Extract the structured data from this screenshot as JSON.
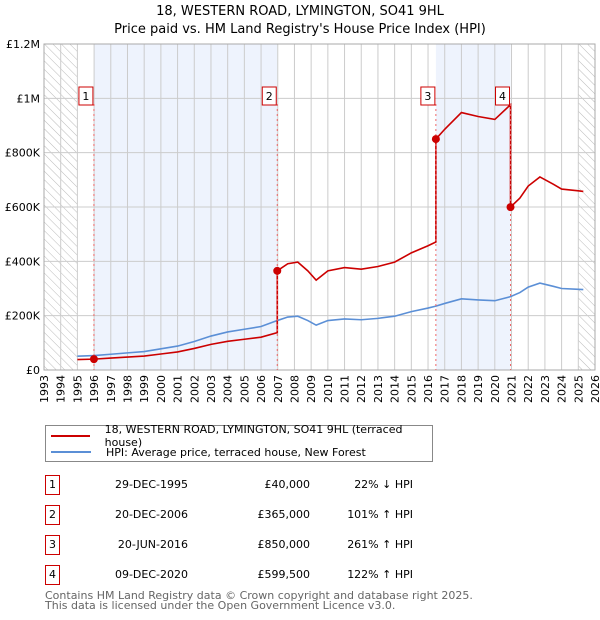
{
  "chart_data": {
    "type": "line",
    "title": "18, WESTERN ROAD, LYMINGTON, SO41 9HL",
    "subtitle": "Price paid vs. HM Land Registry's House Price Index (HPI)",
    "xlim": [
      1993,
      2026
    ],
    "ylim": [
      0,
      1200000
    ],
    "x_ticks": [
      "1993",
      "1994",
      "1995",
      "1996",
      "1997",
      "1998",
      "1999",
      "2000",
      "2001",
      "2002",
      "2003",
      "2004",
      "2005",
      "2006",
      "2007",
      "2008",
      "2009",
      "2010",
      "2011",
      "2012",
      "2013",
      "2014",
      "2015",
      "2016",
      "2017",
      "2018",
      "2019",
      "2020",
      "2021",
      "2022",
      "2023",
      "2024",
      "2025",
      "2026"
    ],
    "y_ticks": [
      {
        "v": 0,
        "label": "£0"
      },
      {
        "v": 200000,
        "label": "£200K"
      },
      {
        "v": 400000,
        "label": "£400K"
      },
      {
        "v": 600000,
        "label": "£600K"
      },
      {
        "v": 800000,
        "label": "£800K"
      },
      {
        "v": 1000000,
        "label": "£1M"
      },
      {
        "v": 1200000,
        "label": "£1.2M"
      }
    ],
    "grid": true,
    "hatched_ranges": [
      [
        1993,
        1995
      ],
      [
        2025,
        2026
      ]
    ],
    "hpi_series": {
      "name": "HPI: Average price, terraced house, New Forest",
      "color": "#5b8fd6",
      "x": [
        1995,
        1996,
        1997,
        1998,
        1999,
        2000,
        2001,
        2002,
        2003,
        2004,
        2005,
        2006,
        2006.97,
        2007.6,
        2008.2,
        2008.8,
        2009.3,
        2010,
        2011,
        2012,
        2013,
        2014,
        2015,
        2016,
        2016.47,
        2017,
        2018,
        2019,
        2020,
        2020.94,
        2021.5,
        2022,
        2022.7,
        2023.5,
        2024,
        2025,
        2025.3
      ],
      "y": [
        51000,
        53000,
        58000,
        63000,
        68000,
        78000,
        88000,
        105000,
        125000,
        140000,
        150000,
        160000,
        182000,
        195000,
        198000,
        182000,
        165000,
        182000,
        188000,
        185000,
        190000,
        198000,
        215000,
        228000,
        235000,
        245000,
        262000,
        258000,
        255000,
        270000,
        285000,
        305000,
        320000,
        308000,
        300000,
        297000,
        296000
      ]
    },
    "price_series": {
      "name": "18, WESTERN ROAD, LYMINGTON, SO41 9HL (terraced house)",
      "color": "#cc0000"
    },
    "sales": [
      {
        "n": "1",
        "x": 1995.99,
        "date": "29-DEC-1995",
        "price": 40000,
        "price_label": "£40,000",
        "hpi": "22% ↓ HPI"
      },
      {
        "n": "2",
        "x": 2006.97,
        "date": "20-DEC-2006",
        "price": 365000,
        "price_label": "£365,000",
        "hpi": "101% ↑ HPI"
      },
      {
        "n": "3",
        "x": 2016.47,
        "date": "20-JUN-2016",
        "price": 850000,
        "price_label": "£850,000",
        "hpi": "261% ↑ HPI"
      },
      {
        "n": "4",
        "x": 2020.94,
        "date": "09-DEC-2020",
        "price": 599500,
        "price_label": "£599,500",
        "hpi": "122% ↑ HPI"
      }
    ]
  },
  "footer": [
    "Contains HM Land Registry data © Crown copyright and database right 2025.",
    "This data is licensed under the Open Government Licence v3.0."
  ]
}
